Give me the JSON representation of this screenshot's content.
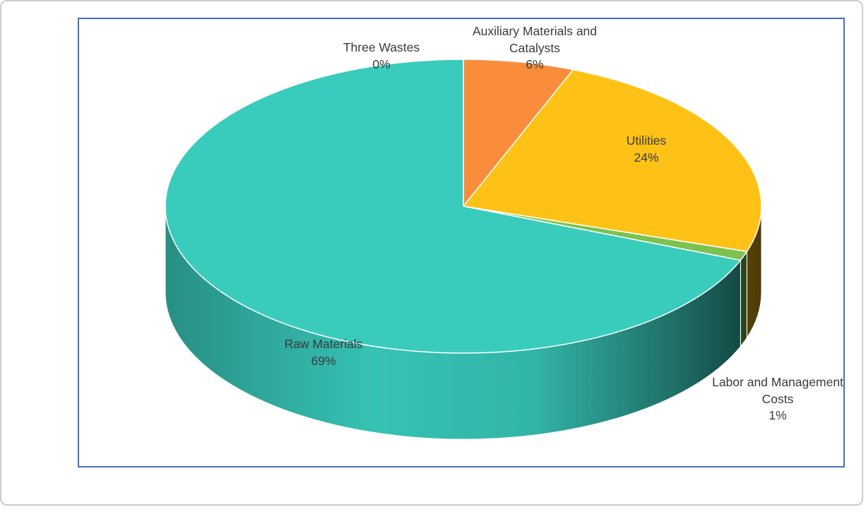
{
  "page": {
    "background": "#FFFFFF",
    "outer_border_color": "#CCCCCC",
    "chart_border_color": "#4472C4",
    "label_text_color": "#3B3B3B"
  },
  "chart_data": {
    "type": "pie",
    "style": "3d-pie",
    "title": "",
    "legend_position": "none",
    "start_angle_deg": 0,
    "direction": "clockwise",
    "units": "percent",
    "slices": [
      {
        "id": "three_wastes",
        "label": "Three Wastes",
        "label_lines": [
          "Three Wastes"
        ],
        "pct_label": "0%",
        "value": 0,
        "color": null
      },
      {
        "id": "auxiliary_materials_and_catalysts",
        "label": "Auxiliary Materials and Catalysts",
        "label_lines": [
          "Auxiliary Materials and",
          "Catalysts"
        ],
        "pct_label": "6%",
        "value": 6,
        "color": "#F98D3C"
      },
      {
        "id": "utilities",
        "label": "Utilities",
        "label_lines": [
          "Utilities"
        ],
        "pct_label": "24%",
        "value": 24,
        "color": "#FDC215"
      },
      {
        "id": "labor_and_management_costs",
        "label": "Labor and Management Costs",
        "label_lines": [
          "Labor and Management",
          "Costs"
        ],
        "pct_label": "1%",
        "value": 1,
        "color": "#7CC24E"
      },
      {
        "id": "raw_materials",
        "label": "Raw Materials",
        "label_lines": [
          "Raw Materials"
        ],
        "pct_label": "69%",
        "value": 69,
        "color": "#39CCBD"
      }
    ]
  }
}
